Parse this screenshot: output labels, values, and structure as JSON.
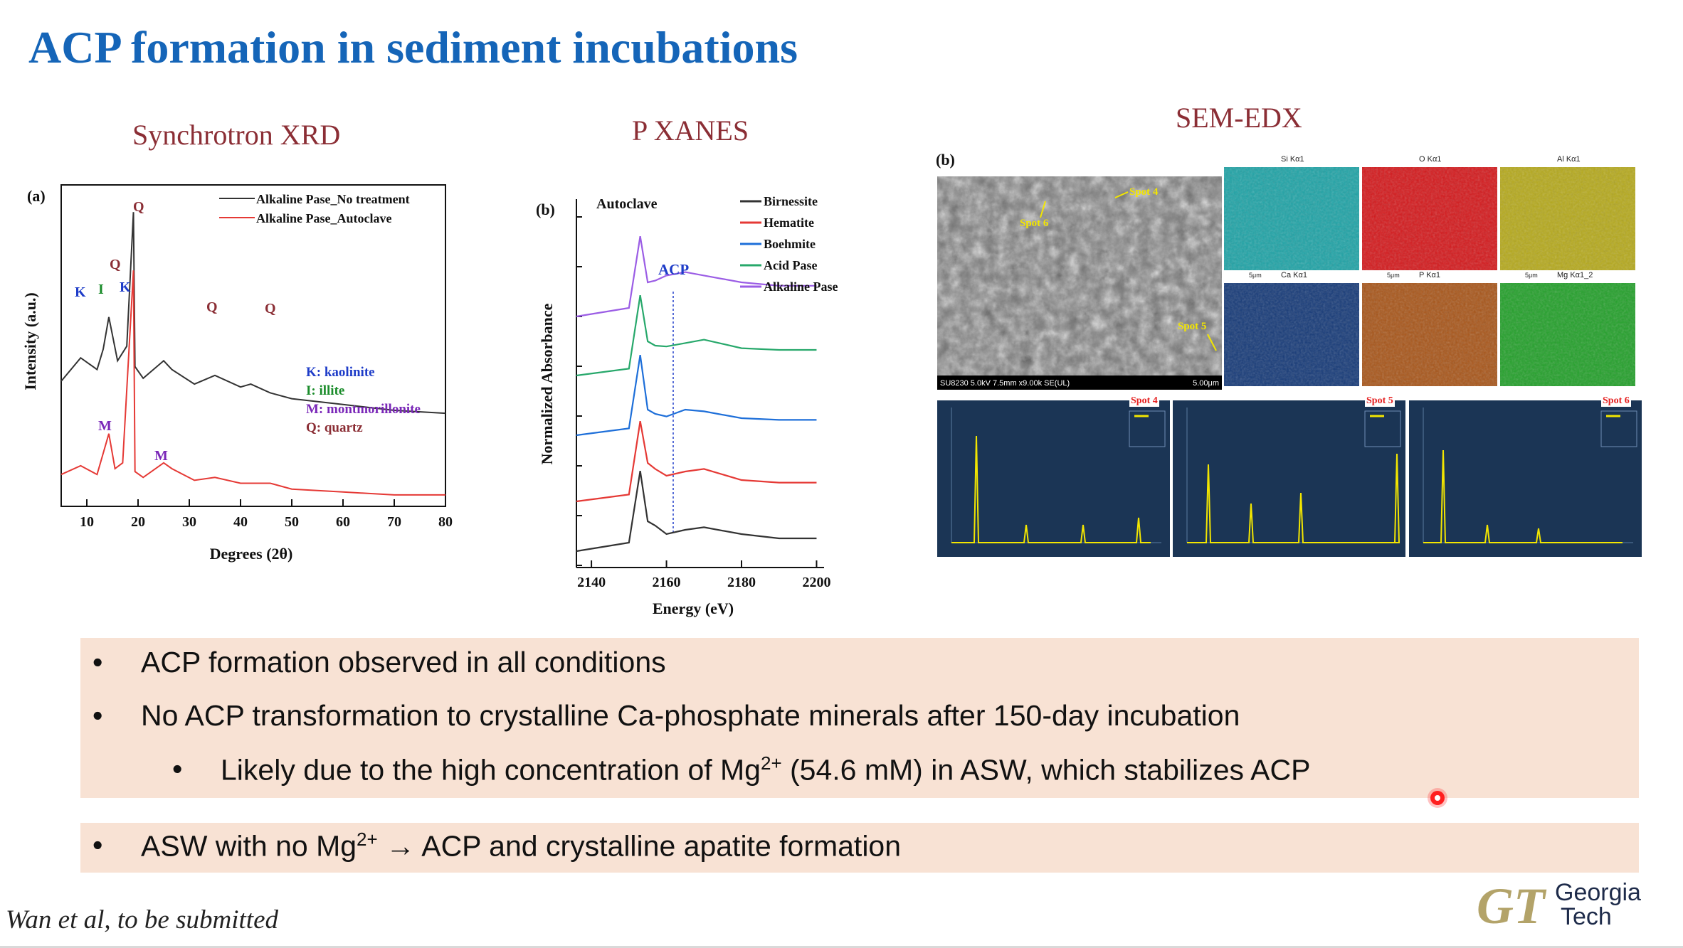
{
  "slide": {
    "title": "ACP formation in sediment incubations",
    "citation": "Wan et al, to be submitted",
    "logo_text": {
      "mark": "GT",
      "line1": "Georgia",
      "line2": "Tech"
    },
    "colors": {
      "title": "#1565b8",
      "section_label": "#8b2e35",
      "bullet_box": "#f8e2d4",
      "logo_gold": "#b3a369",
      "logo_navy": "#1e2b4a"
    }
  },
  "sections": {
    "xrd": "Synchrotron XRD",
    "xanes": "P XANES",
    "sem": "SEM-EDX"
  },
  "xrd_panel": {
    "panel_letter": "(a)",
    "legend": [
      "Alkaline Pase_No treatment",
      "Alkaline Pase_Autoclave"
    ],
    "peak_labels": {
      "K": "K",
      "I": "I",
      "Q": "Q",
      "M": "M"
    },
    "mineral_key": [
      "K: kaolinite",
      "I: illite",
      "M: montmorillonite",
      "Q: quartz"
    ]
  },
  "xanes_panel": {
    "panel_letter": "(b)",
    "condition_label": "Autoclave",
    "acp_label": "ACP",
    "legend": [
      "Birnessite",
      "Hematite",
      "Boehmite",
      "Acid Pase",
      "Alkaline Pase"
    ]
  },
  "sem_panel": {
    "panel_letter": "(b)",
    "image_caption": "SU8230 5.0kV 7.5mm x9.00k SE(UL)",
    "image_scale": "5.00μm",
    "spot_labels": [
      "Spot 4",
      "Spot 6",
      "Spot 5"
    ],
    "maps": [
      {
        "label": "Si Kα1",
        "color": "#1fa3a6"
      },
      {
        "label": "O Kα1",
        "color": "#d4191c"
      },
      {
        "label": "Al Kα1",
        "color": "#b5a91c"
      },
      {
        "label": "Ca Kα1",
        "color": "#163a78"
      },
      {
        "label": "P Kα1",
        "color": "#a8561a"
      },
      {
        "label": "Mg Kα1_2",
        "color": "#23a02a"
      }
    ],
    "scale_label": "5μm",
    "spectra": [
      "Spot 4",
      "Spot 5",
      "Spot 6"
    ]
  },
  "bullets": {
    "b1": "ACP formation observed in all conditions",
    "b2": "No ACP transformation to crystalline Ca-phosphate minerals after 150-day incubation",
    "b3_pre": "Likely due to the high concentration of Mg",
    "b3_sup": "2+",
    "b3_post": " (54.6 mM) in ASW, which stabilizes ACP",
    "b4_pre": "ASW with no Mg",
    "b4_sup": "2+",
    "b4_post": " → ACP and crystalline apatite formation",
    "marker": "•"
  },
  "chart_data": [
    {
      "type": "line",
      "title": "Synchrotron XRD",
      "xlabel": "Degrees (2θ)",
      "ylabel": "Intensity (a.u.)",
      "xlim": [
        5,
        80
      ],
      "x_ticks": [
        10,
        20,
        30,
        40,
        50,
        60,
        70,
        80
      ],
      "y_ticks_shown": false,
      "legend_position": "top-right",
      "series": [
        {
          "name": "Alkaline Pase_No treatment",
          "color": "#333333",
          "x": [
            5,
            8.8,
            12,
            13.2,
            14.3,
            16,
            17.8,
            19.1,
            19.4,
            21,
            25,
            26.6,
            31,
            35,
            40,
            42,
            45.8,
            50,
            60,
            70,
            80
          ],
          "y": [
            0.4,
            0.48,
            0.44,
            0.51,
            0.62,
            0.47,
            0.52,
            0.98,
            0.45,
            0.41,
            0.47,
            0.44,
            0.39,
            0.42,
            0.38,
            0.39,
            0.36,
            0.34,
            0.32,
            0.3,
            0.29
          ]
        },
        {
          "name": "Alkaline Pase_Autoclave",
          "color": "#e53935",
          "x": [
            5,
            8.8,
            12,
            14.3,
            15.5,
            17,
            19.1,
            19.4,
            21,
            25,
            26.6,
            31,
            35,
            40,
            45.8,
            50,
            60,
            70,
            80
          ],
          "y": [
            0.08,
            0.11,
            0.08,
            0.22,
            0.1,
            0.12,
            0.78,
            0.09,
            0.07,
            0.12,
            0.1,
            0.06,
            0.07,
            0.05,
            0.05,
            0.03,
            0.02,
            0.01,
            0.01
          ]
        }
      ]
    },
    {
      "type": "line",
      "title": "P XANES",
      "xlabel": "Energy (eV)",
      "ylabel": "Normalized Absorbance",
      "xlim": [
        2136,
        2202
      ],
      "x_ticks": [
        2140,
        2160,
        2180,
        2200
      ],
      "y_ticks_shown": false,
      "stacked_offsets": true,
      "legend_position": "top-right",
      "series": [
        {
          "name": "Birnessite",
          "color": "#333333",
          "x": [
            2136,
            2150,
            2153,
            2155,
            2157,
            2160,
            2165,
            2170,
            2180,
            2190,
            2200
          ],
          "y": [
            0.0,
            0.1,
            0.94,
            0.35,
            0.3,
            0.2,
            0.25,
            0.28,
            0.2,
            0.15,
            0.15
          ]
        },
        {
          "name": "Hematite",
          "color": "#e53935",
          "x": [
            2136,
            2150,
            2153,
            2155,
            2157,
            2160,
            2165,
            2170,
            2180,
            2190,
            2200
          ],
          "y": [
            0.0,
            0.08,
            0.94,
            0.45,
            0.38,
            0.3,
            0.35,
            0.38,
            0.25,
            0.22,
            0.22
          ]
        },
        {
          "name": "Boehmite",
          "color": "#1e6fd9",
          "x": [
            2136,
            2150,
            2153,
            2155,
            2157,
            2160,
            2165,
            2170,
            2180,
            2190,
            2200
          ],
          "y": [
            0.0,
            0.08,
            0.94,
            0.3,
            0.25,
            0.22,
            0.3,
            0.28,
            0.2,
            0.18,
            0.18
          ]
        },
        {
          "name": "Acid Pase",
          "color": "#27a86b",
          "x": [
            2136,
            2150,
            2153,
            2155,
            2157,
            2160,
            2165,
            2170,
            2180,
            2190,
            2200
          ],
          "y": [
            0.0,
            0.08,
            0.94,
            0.4,
            0.35,
            0.34,
            0.38,
            0.42,
            0.32,
            0.3,
            0.3
          ]
        },
        {
          "name": "Alkaline Pase",
          "color": "#9b5de5",
          "x": [
            2136,
            2150,
            2153,
            2155,
            2157,
            2160,
            2165,
            2170,
            2180,
            2190,
            2200
          ],
          "y": [
            0.0,
            0.1,
            0.94,
            0.4,
            0.42,
            0.48,
            0.52,
            0.48,
            0.4,
            0.36,
            0.36
          ]
        }
      ],
      "annotations": [
        "Autoclave",
        "ACP"
      ]
    }
  ]
}
